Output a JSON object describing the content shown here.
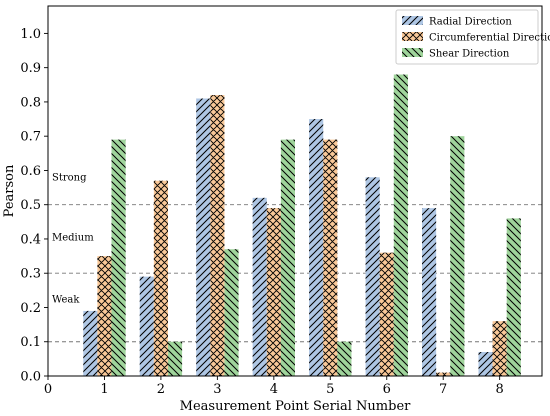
{
  "chart_data": {
    "type": "bar",
    "xlabel": "Measurement Point Serial Number",
    "ylabel": "Pearson",
    "categories": [
      "1",
      "2",
      "3",
      "4",
      "5",
      "6",
      "7",
      "8"
    ],
    "x_ticks": [
      "0",
      "1",
      "2",
      "3",
      "4",
      "5",
      "6",
      "7",
      "8"
    ],
    "y_ticks": [
      "0.0",
      "0.1",
      "0.2",
      "0.3",
      "0.4",
      "0.5",
      "0.6",
      "0.7",
      "0.8",
      "0.9",
      "1.0"
    ],
    "xlim": [
      0,
      8.75
    ],
    "ylim": [
      0,
      1.08
    ],
    "legend_position": "top-right",
    "series": [
      {
        "name": "Radial Direction",
        "values": [
          0.19,
          0.29,
          0.81,
          0.52,
          0.75,
          0.58,
          0.49,
          0.07
        ],
        "color": "#aec6e4",
        "hatch": "forward-diagonal"
      },
      {
        "name": "Circumferential Direction",
        "values": [
          0.35,
          0.57,
          0.82,
          0.49,
          0.69,
          0.36,
          0.01,
          0.16
        ],
        "color": "#f9c898",
        "hatch": "cross"
      },
      {
        "name": "Shear Direction",
        "values": [
          0.69,
          0.1,
          0.37,
          0.69,
          0.1,
          0.88,
          0.7,
          0.46
        ],
        "color": "#9fd49b",
        "hatch": "back-diagonal"
      }
    ],
    "reference_lines": [
      {
        "y": 0.5,
        "label": "Strong",
        "label_y": 0.57
      },
      {
        "y": 0.3,
        "label": "Medium",
        "label_y": 0.395
      },
      {
        "y": 0.1,
        "label": "Weak",
        "label_y": 0.215
      }
    ],
    "grid": false
  }
}
